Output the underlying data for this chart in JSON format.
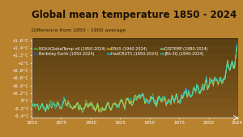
{
  "title": "Global mean temperature 1850 - 2024",
  "subtitle": "Difference from 1850 - 1900 average",
  "xlim": [
    1850,
    2025
  ],
  "ylim": [
    -0.45,
    1.65
  ],
  "yticks": [
    -0.4,
    -0.2,
    0.0,
    0.2,
    0.4,
    0.6,
    0.8,
    1.0,
    1.2,
    1.4,
    1.6
  ],
  "ytick_labels": [
    "-0.4°C",
    "-0.2°C",
    "0°C",
    "+0.2°C",
    "+0.4°C",
    "+0.6°C",
    "+0.8°C",
    "+1°C",
    "+1.2°C",
    "+1.4°C",
    "+1.6°C"
  ],
  "xticks": [
    1850,
    1875,
    1900,
    1925,
    1950,
    1975,
    2000,
    2024
  ],
  "bg_colors": [
    "#3a2a10",
    "#7a5520",
    "#b07830",
    "#c8963a",
    "#d4a845",
    "#c89038",
    "#b07830",
    "#8a6020"
  ],
  "line_colors": [
    "#40e040",
    "#00cfff",
    "#1060e0",
    "#90ee90",
    "#e0c020",
    "#20d8d0"
  ],
  "legend_labels": [
    "NOAAGlobalTemp v6 (1850-2024)",
    "Berkeley Earth (1850-2024)",
    "ERA5 (1940-2024)",
    "HadCRUT5 (1850-2024)",
    "GISTEMP (1880-2024)",
    "JRA-3Q (1940-2024)"
  ],
  "legend_colors": [
    "#40e040",
    "#1060e0",
    "#e0c020",
    "#00cfff",
    "#90ee90",
    "#20d8d0"
  ],
  "title_color": "#1a1a1a",
  "subtitle_color": "#2a2a2a",
  "axis_color": "#333333",
  "tick_color": "#333333",
  "title_fontsize": 8.5,
  "subtitle_fontsize": 4.5,
  "tick_fontsize": 4,
  "legend_fontsize": 3.5
}
